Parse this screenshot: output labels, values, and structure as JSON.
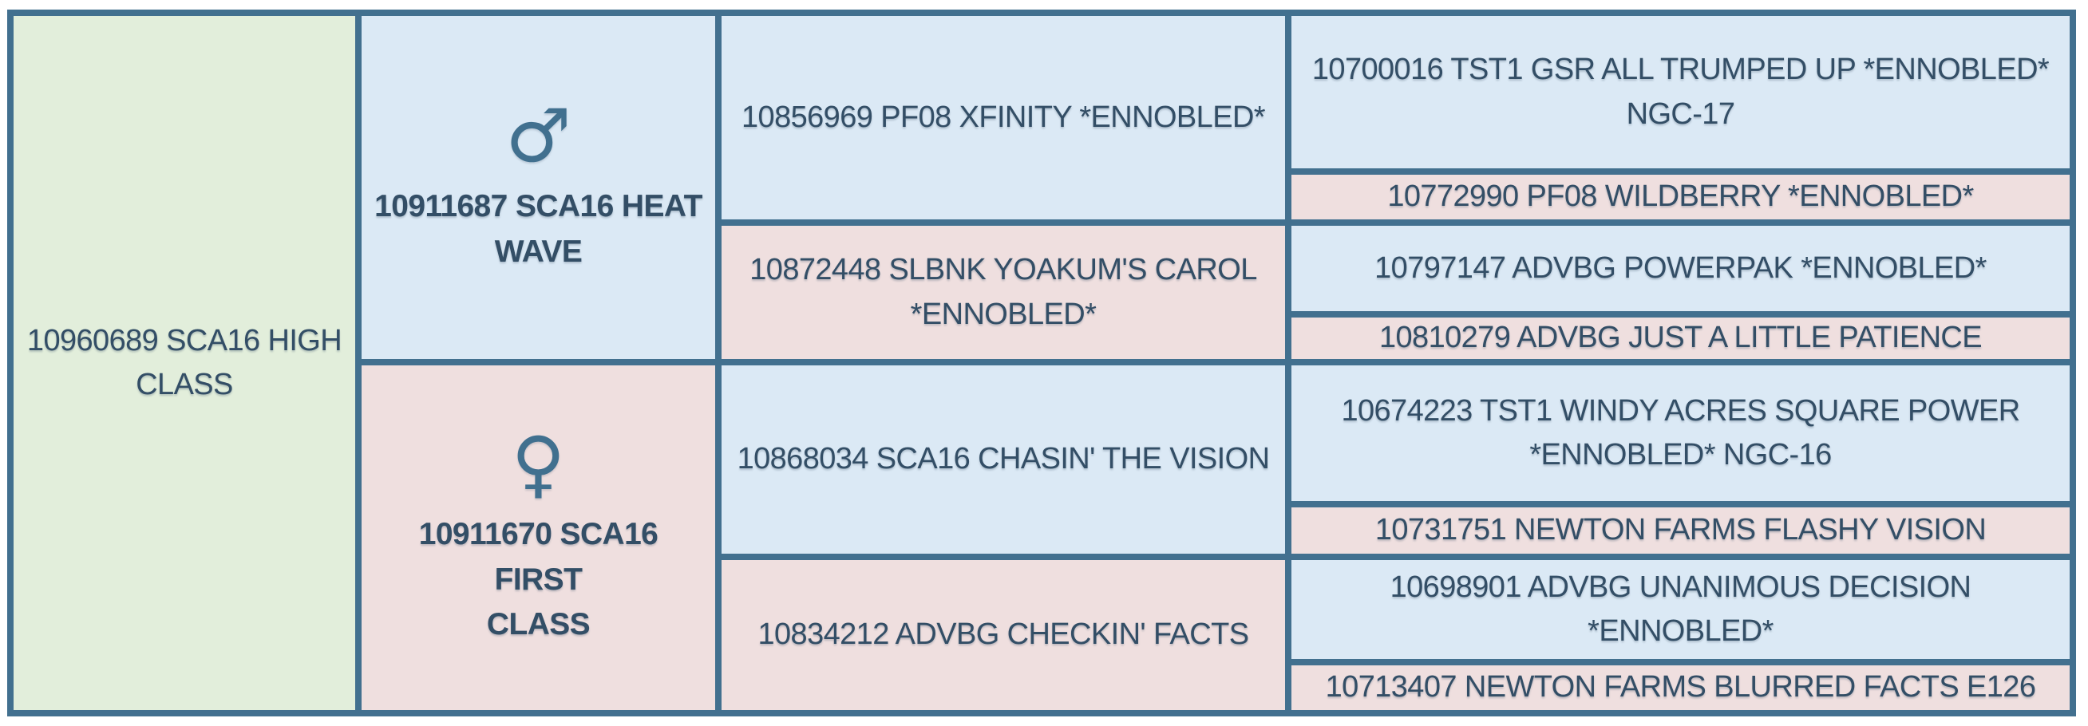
{
  "colors": {
    "frame": "#42708f",
    "subject_bg": "#e2eedb",
    "male_bg": "#dbe9f5",
    "female_bg": "#efdfdf",
    "text": "#334e66",
    "sex_symbol": "#41708f"
  },
  "pedigree": {
    "subject": {
      "label": "10960689 SCA16 HIGH\nCLASS"
    },
    "sire": {
      "symbol": "♂",
      "label": "10911687 SCA16 HEAT\nWAVE"
    },
    "dam": {
      "symbol": "♀",
      "label": "10911670 SCA16 FIRST\nCLASS"
    },
    "g2": [
      {
        "label": "10856969 PF08 XFINITY *ENNOBLED*"
      },
      {
        "label": "10872448 SLBNK YOAKUM'S CAROL\n*ENNOBLED*"
      },
      {
        "label": "10868034 SCA16 CHASIN' THE VISION"
      },
      {
        "label": "10834212 ADVBG CHECKIN' FACTS"
      }
    ],
    "g3": [
      {
        "label": "10700016 TST1 GSR ALL TRUMPED UP *ENNOBLED*\nNGC-17"
      },
      {
        "label": "10772990 PF08 WILDBERRY *ENNOBLED*"
      },
      {
        "label": "10797147 ADVBG POWERPAK *ENNOBLED*"
      },
      {
        "label": "10810279 ADVBG JUST A LITTLE PATIENCE"
      },
      {
        "label": "10674223 TST1 WINDY ACRES SQUARE POWER\n*ENNOBLED* NGC-16"
      },
      {
        "label": "10731751 NEWTON FARMS FLASHY VISION"
      },
      {
        "label": "10698901 ADVBG UNANIMOUS DECISION\n*ENNOBLED*"
      },
      {
        "label": "10713407 NEWTON FARMS BLURRED FACTS E126"
      }
    ]
  }
}
